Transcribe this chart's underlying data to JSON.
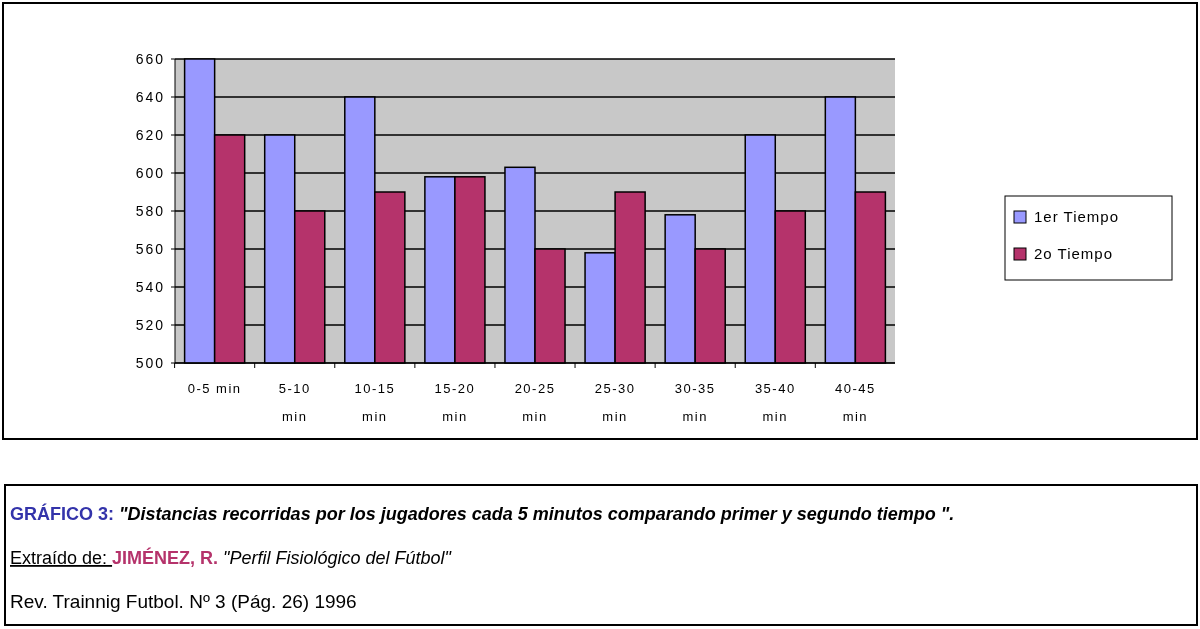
{
  "chart_data": {
    "type": "bar",
    "categories": [
      "0-5 min",
      "5-10 min",
      "10-15 min",
      "15-20 min",
      "20-25 min",
      "25-30 min",
      "30-35 min",
      "35-40 min",
      "40-45 min"
    ],
    "series": [
      {
        "name": "1er Tiempo",
        "color": "#9999ff",
        "values": [
          660,
          620,
          640,
          598,
          603,
          558,
          578,
          620,
          640
        ]
      },
      {
        "name": "2o Tiempo",
        "color": "#b5336b",
        "values": [
          620,
          580,
          590,
          598,
          560,
          590,
          560,
          580,
          590
        ]
      }
    ],
    "ylim": [
      500,
      660
    ],
    "yticks": [
      500,
      520,
      540,
      560,
      580,
      600,
      620,
      640,
      660
    ],
    "grid": "y",
    "legend": "right",
    "annotations": [
      "GRÁFICO 3:",
      "\"Distancias recorridas por los jugadores cada 5 minutos comparando primer y segundo tiempo \".",
      "Extraído de:",
      "JIMÉNEZ, R.",
      "\"Perfil Fisiológico del Fútbol\"",
      "Rev. Trainnig Futbol. Nº 3  (Pág. 26) 1996"
    ]
  }
}
